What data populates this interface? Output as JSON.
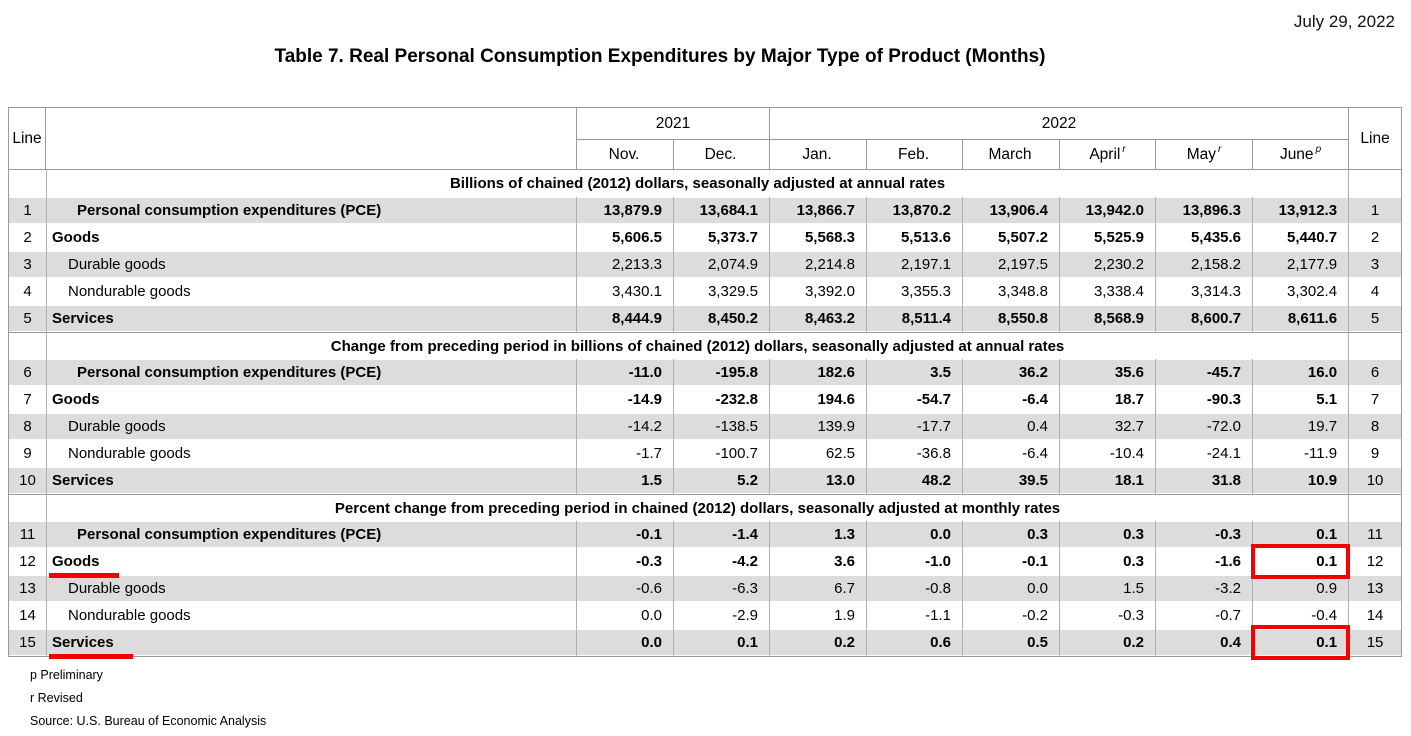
{
  "page": {
    "date": "July 29, 2022",
    "title": "Table 7. Real Personal Consumption Expenditures by Major Type of Product (Months)",
    "footnotes": [
      "p Preliminary",
      "r Revised",
      "Source: U.S. Bureau of Economic Analysis"
    ]
  },
  "colors": {
    "highlight_red": "#f40000",
    "row_band_gray": "#dcdcdc",
    "grid_gray": "#9a9a9a"
  },
  "table": {
    "line_header": "Line",
    "year_groups": [
      {
        "label": "2021",
        "months": 2
      },
      {
        "label": "2022",
        "months": 6
      }
    ],
    "months": [
      {
        "label": "Nov.",
        "sup": ""
      },
      {
        "label": "Dec.",
        "sup": ""
      },
      {
        "label": "Jan.",
        "sup": ""
      },
      {
        "label": "Feb.",
        "sup": ""
      },
      {
        "label": "March",
        "sup": ""
      },
      {
        "label": "April",
        "sup": "r"
      },
      {
        "label": "May",
        "sup": "r"
      },
      {
        "label": "June",
        "sup": "p"
      }
    ],
    "sections": [
      {
        "header": "Billions of chained (2012) dollars, seasonally adjusted at annual rates",
        "rows": [
          {
            "line": 1,
            "label": "Personal consumption expenditures (PCE)",
            "indent": 2,
            "bold": true,
            "values": [
              "13,879.9",
              "13,684.1",
              "13,866.7",
              "13,870.2",
              "13,906.4",
              "13,942.0",
              "13,896.3",
              "13,912.3"
            ]
          },
          {
            "line": 2,
            "label": "Goods",
            "indent": 0,
            "bold": true,
            "values": [
              "5,606.5",
              "5,373.7",
              "5,568.3",
              "5,513.6",
              "5,507.2",
              "5,525.9",
              "5,435.6",
              "5,440.7"
            ]
          },
          {
            "line": 3,
            "label": "Durable goods",
            "indent": 1,
            "bold": false,
            "values": [
              "2,213.3",
              "2,074.9",
              "2,214.8",
              "2,197.1",
              "2,197.5",
              "2,230.2",
              "2,158.2",
              "2,177.9"
            ]
          },
          {
            "line": 4,
            "label": "Nondurable goods",
            "indent": 1,
            "bold": false,
            "values": [
              "3,430.1",
              "3,329.5",
              "3,392.0",
              "3,355.3",
              "3,348.8",
              "3,338.4",
              "3,314.3",
              "3,302.4"
            ]
          },
          {
            "line": 5,
            "label": "Services",
            "indent": 0,
            "bold": true,
            "values": [
              "8,444.9",
              "8,450.2",
              "8,463.2",
              "8,511.4",
              "8,550.8",
              "8,568.9",
              "8,600.7",
              "8,611.6"
            ]
          }
        ]
      },
      {
        "header": "Change from preceding period in billions of chained (2012) dollars, seasonally adjusted at annual rates",
        "rows": [
          {
            "line": 6,
            "label": "Personal consumption expenditures (PCE)",
            "indent": 2,
            "bold": true,
            "values": [
              "-11.0",
              "-195.8",
              "182.6",
              "3.5",
              "36.2",
              "35.6",
              "-45.7",
              "16.0"
            ]
          },
          {
            "line": 7,
            "label": "Goods",
            "indent": 0,
            "bold": true,
            "values": [
              "-14.9",
              "-232.8",
              "194.6",
              "-54.7",
              "-6.4",
              "18.7",
              "-90.3",
              "5.1"
            ]
          },
          {
            "line": 8,
            "label": "Durable goods",
            "indent": 1,
            "bold": false,
            "values": [
              "-14.2",
              "-138.5",
              "139.9",
              "-17.7",
              "0.4",
              "32.7",
              "-72.0",
              "19.7"
            ]
          },
          {
            "line": 9,
            "label": "Nondurable goods",
            "indent": 1,
            "bold": false,
            "values": [
              "-1.7",
              "-100.7",
              "62.5",
              "-36.8",
              "-6.4",
              "-10.4",
              "-24.1",
              "-11.9"
            ]
          },
          {
            "line": 10,
            "label": "Services",
            "indent": 0,
            "bold": true,
            "values": [
              "1.5",
              "5.2",
              "13.0",
              "48.2",
              "39.5",
              "18.1",
              "31.8",
              "10.9"
            ]
          }
        ]
      },
      {
        "header": "Percent change from preceding period in chained (2012) dollars, seasonally adjusted at monthly rates",
        "rows": [
          {
            "line": 11,
            "label": "Personal consumption expenditures (PCE)",
            "indent": 2,
            "bold": true,
            "values": [
              "-0.1",
              "-1.4",
              "1.3",
              "0.0",
              "0.3",
              "0.3",
              "-0.3",
              "0.1"
            ]
          },
          {
            "line": 12,
            "label": "Goods",
            "indent": 0,
            "bold": true,
            "red_underline": true,
            "red_box_month": "June",
            "values": [
              "-0.3",
              "-4.2",
              "3.6",
              "-1.0",
              "-0.1",
              "0.3",
              "-1.6",
              "0.1"
            ]
          },
          {
            "line": 13,
            "label": "Durable goods",
            "indent": 1,
            "bold": false,
            "values": [
              "-0.6",
              "-6.3",
              "6.7",
              "-0.8",
              "0.0",
              "1.5",
              "-3.2",
              "0.9"
            ]
          },
          {
            "line": 14,
            "label": "Nondurable goods",
            "indent": 1,
            "bold": false,
            "values": [
              "0.0",
              "-2.9",
              "1.9",
              "-1.1",
              "-0.2",
              "-0.3",
              "-0.7",
              "-0.4"
            ]
          },
          {
            "line": 15,
            "label": "Services",
            "indent": 0,
            "bold": true,
            "red_underline": true,
            "red_box_month": "June",
            "values": [
              "0.0",
              "0.1",
              "0.2",
              "0.6",
              "0.5",
              "0.2",
              "0.4",
              "0.1"
            ]
          }
        ]
      }
    ]
  }
}
